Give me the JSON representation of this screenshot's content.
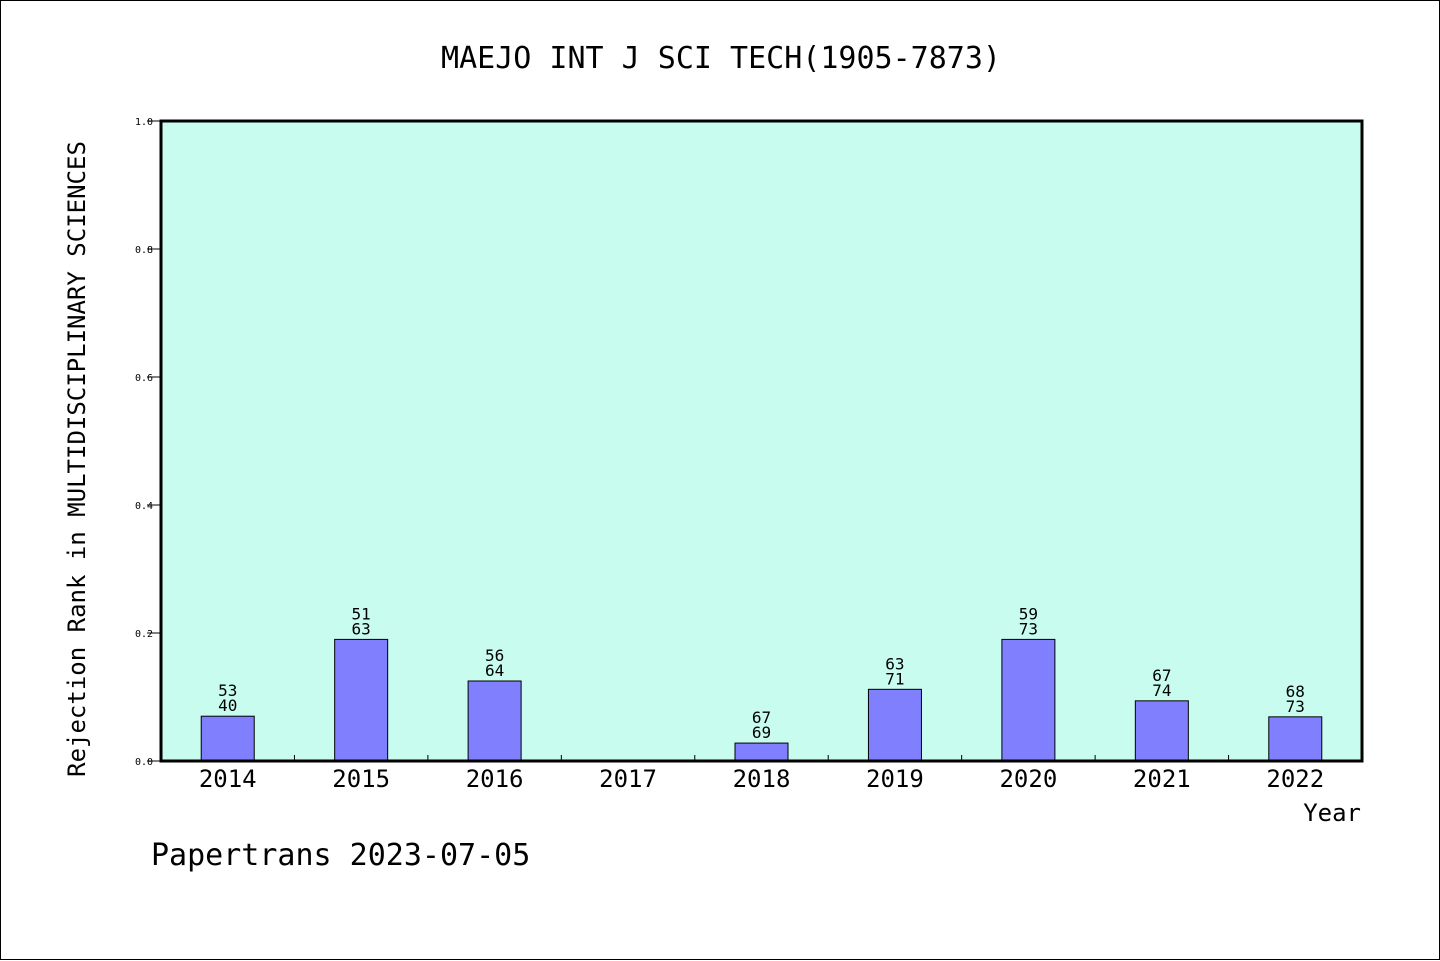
{
  "chart_data": {
    "type": "bar",
    "title": "MAEJO INT J SCI TECH(1905-7873)",
    "xlabel": "Year",
    "ylabel": "Rejection Rank in MULTIDISCIPLINARY SCIENCES",
    "ylim": [
      0.0,
      1.0
    ],
    "yticks": [
      "0.0",
      "0.2",
      "0.4",
      "0.6",
      "0.8",
      "1.0"
    ],
    "categories": [
      "2014",
      "2015",
      "2016",
      "2017",
      "2018",
      "2019",
      "2020",
      "2021",
      "2022"
    ],
    "values": [
      0.07,
      0.19,
      0.125,
      0.0,
      0.028,
      0.112,
      0.19,
      0.094,
      0.069
    ],
    "label_top": [
      "53",
      "51",
      "56",
      "",
      "67",
      "63",
      "59",
      "67",
      "68"
    ],
    "label_bottom": [
      "40",
      "63",
      "64",
      "",
      "69",
      "71",
      "73",
      "74",
      "73"
    ],
    "grid": false,
    "colors": {
      "plot_background": "#c8fcee",
      "bar_fill": "#8080ff",
      "bar_stroke": "#000000"
    }
  },
  "footer": {
    "credit": "Papertrans 2023-07-05"
  }
}
